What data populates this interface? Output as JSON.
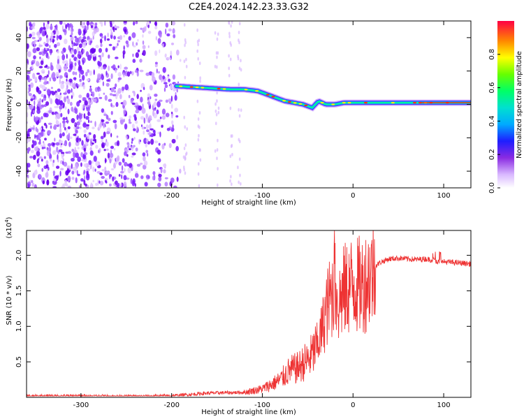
{
  "title": "C2E4.2024.142.23.33.G32",
  "chart_data": [
    {
      "type": "heatmap",
      "xlabel": "Height of straight line (km)",
      "ylabel": "Frequency (Hz)",
      "xlim": [
        -360,
        130
      ],
      "ylim": [
        -50,
        50
      ],
      "xticks": [
        -300,
        -200,
        -100,
        0,
        100
      ],
      "xtick_labels": [
        "-300",
        "-200",
        "-100",
        "0",
        "100"
      ],
      "yticks": [
        -40,
        -20,
        0,
        20,
        40
      ],
      "ytick_labels": [
        "-40",
        "-20",
        "0",
        "20",
        "40"
      ],
      "colorbar": {
        "label": "Normalized spectral amplitude",
        "range": [
          0,
          1
        ],
        "ticks": [
          0.0,
          0.2,
          0.4,
          0.6,
          0.8
        ],
        "tick_labels": [
          "0.0",
          "0.2",
          "0.4",
          "0.6",
          "0.8"
        ]
      },
      "ridge": {
        "x": [
          -195,
          -180,
          -165,
          -150,
          -135,
          -120,
          -105,
          -90,
          -75,
          -65,
          -55,
          -45,
          -38,
          -30,
          -20,
          -10,
          0,
          20,
          50,
          80,
          110,
          130
        ],
        "y": [
          11,
          10.5,
          10,
          9.5,
          9,
          9,
          8,
          5,
          2,
          1,
          0,
          -2,
          2,
          0,
          0,
          1,
          1,
          1,
          1,
          1,
          1,
          1
        ]
      },
      "grid": false
    },
    {
      "type": "line",
      "xlabel": "Height of straight line (km)",
      "ylabel": "SNR (10 * v/v)",
      "y_multiplier": "(x10^4)",
      "y_multiplier_base": "(x10",
      "y_multiplier_exp": "4",
      "y_multiplier_close": ")",
      "xlim": [
        -360,
        130
      ],
      "ylim": [
        0,
        23500
      ],
      "xticks": [
        -300,
        -200,
        -100,
        0,
        100
      ],
      "xtick_labels": [
        "-300",
        "-200",
        "-100",
        "0",
        "100"
      ],
      "yticks": [
        5000,
        10000,
        15000,
        20000
      ],
      "ytick_labels": [
        "0.5",
        "1.0",
        "1.5",
        "2.0"
      ],
      "color": "#ee3333",
      "series": [
        {
          "x": [
            -360,
            -300,
            -250,
            -200,
            -160,
            -120,
            -100,
            -90,
            -80,
            -70,
            -60,
            -55,
            -50,
            -45,
            -40,
            -35,
            -30,
            -25,
            -20,
            -18,
            -15,
            -10,
            -5,
            0,
            5,
            10,
            15,
            20,
            25,
            30,
            40,
            50,
            60,
            70,
            80,
            90,
            95,
            100,
            110,
            120,
            130
          ],
          "y": [
            150,
            200,
            100,
            200,
            600,
            700,
            1200,
            1800,
            2500,
            3800,
            4200,
            4800,
            5200,
            6000,
            7200,
            9000,
            12000,
            14000,
            15500,
            12500,
            13500,
            15000,
            15500,
            16000,
            15700,
            15900,
            16500,
            17500,
            18500,
            19000,
            19500,
            19600,
            19500,
            19400,
            19500,
            19300,
            19000,
            19100,
            19000,
            18900,
            18800
          ]
        }
      ],
      "grid": false
    }
  ]
}
